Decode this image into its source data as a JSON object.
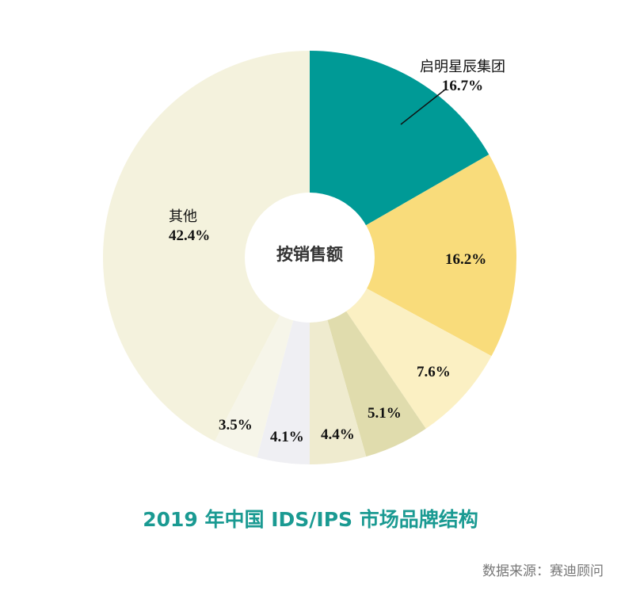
{
  "chart_data": {
    "type": "pie",
    "donut": true,
    "start": "top",
    "direction": "clockwise",
    "center_label": "按销售额",
    "title": "2019 年中国 IDS/IPS 市场品牌结构",
    "source": "数据来源：赛迪顾问",
    "slices": [
      {
        "name": "启明星辰集团",
        "value": 16.7,
        "label": "16.7%",
        "color": "#009a96"
      },
      {
        "name": "",
        "value": 16.2,
        "label": "16.2%",
        "color": "#f9dc7b"
      },
      {
        "name": "",
        "value": 7.6,
        "label": "7.6%",
        "color": "#fbf0c3"
      },
      {
        "name": "",
        "value": 5.1,
        "label": "5.1%",
        "color": "#e0dcad"
      },
      {
        "name": "",
        "value": 4.4,
        "label": "4.4%",
        "color": "#efebcf"
      },
      {
        "name": "",
        "value": 4.1,
        "label": "4.1%",
        "color": "#efeff3"
      },
      {
        "name": "",
        "value": 3.5,
        "label": "3.5%",
        "color": "#f6f5e9"
      },
      {
        "name": "其他",
        "value": 42.4,
        "label": "42.4%",
        "color": "#f4f2dd"
      }
    ]
  }
}
